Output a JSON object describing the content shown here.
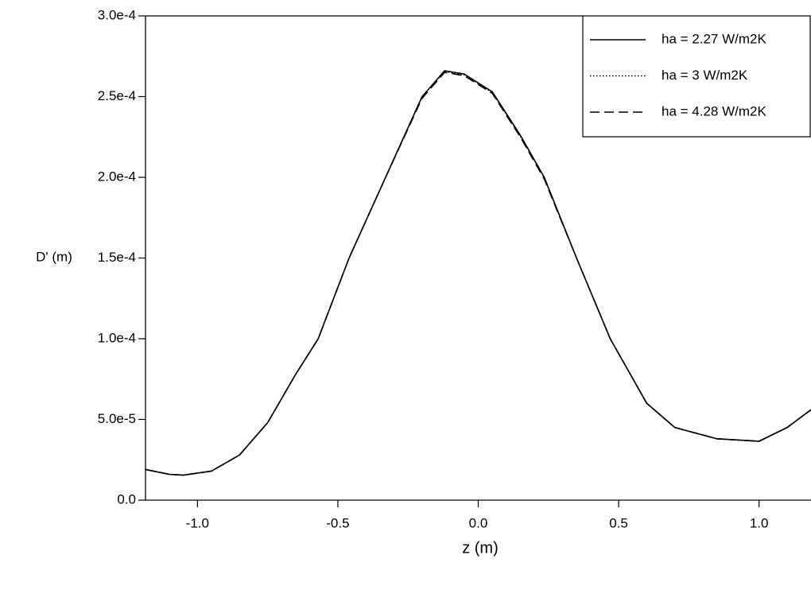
{
  "chart_data": {
    "type": "line",
    "x_label": "z (m)",
    "y_label": "D' (m)",
    "x": [
      -1.185,
      -1.1,
      -1.05,
      -0.95,
      -0.85,
      -0.75,
      -0.65,
      -0.57,
      -0.46,
      -0.33,
      -0.2,
      -0.12,
      -0.05,
      0.05,
      0.15,
      0.235,
      0.35,
      0.47,
      0.6,
      0.7,
      0.85,
      1.0,
      1.1,
      1.185
    ],
    "series": [
      {
        "name": "ha = 2.27 W/m2K",
        "color": "#000000",
        "dash": "solid",
        "values": [
          1.9e-05,
          1.6e-05,
          1.55e-05,
          1.8e-05,
          2.8e-05,
          4.8e-05,
          7.8e-05,
          0.0001,
          0.00015,
          0.0002,
          0.00025,
          0.000266,
          0.000264,
          0.000253,
          0.000226,
          0.0002,
          0.00015,
          0.0001,
          6e-05,
          4.5e-05,
          3.8e-05,
          3.65e-05,
          4.5e-05,
          5.6e-05
        ]
      },
      {
        "name": "ha = 3 W/m2K",
        "color": "#000000",
        "dash": "dotted",
        "values": [
          1.9e-05,
          1.6e-05,
          1.55e-05,
          1.8e-05,
          2.8e-05,
          4.8e-05,
          7.8e-05,
          0.0001,
          0.00015,
          0.0002,
          0.00025,
          0.0002655,
          0.0002635,
          0.0002525,
          0.0002255,
          0.0002,
          0.00015,
          0.0001,
          6e-05,
          4.5e-05,
          3.8e-05,
          3.65e-05,
          4.5e-05,
          5.6e-05
        ]
      },
      {
        "name": "ha = 4.28 W/m2K",
        "color": "#000000",
        "dash": "dashed",
        "values": [
          1.9e-05,
          1.6e-05,
          1.55e-05,
          1.8e-05,
          2.8e-05,
          4.8e-05,
          7.8e-05,
          0.0001,
          0.00015,
          0.0002,
          0.000249,
          0.000265,
          0.000263,
          0.000252,
          0.000225,
          0.000199,
          0.00015,
          0.0001,
          6e-05,
          4.5e-05,
          3.8e-05,
          3.65e-05,
          4.5e-05,
          5.6e-05
        ]
      }
    ],
    "xlim": [
      -1.185,
      1.185
    ],
    "xticks": [
      {
        "value": -1,
        "label": "-1.0"
      },
      {
        "value": -0.5,
        "label": "-0.5"
      },
      {
        "value": 0,
        "label": "0.0"
      },
      {
        "value": 0.5,
        "label": "0.5"
      },
      {
        "value": 1,
        "label": "1.0"
      }
    ],
    "ylim": [
      0,
      0.0003
    ],
    "yticks": [
      {
        "value": 0,
        "label": "0.0"
      },
      {
        "value": 5e-05,
        "label": "5.0e-5"
      },
      {
        "value": 0.0001,
        "label": "1.0e-4"
      },
      {
        "value": 0.00015,
        "label": "1.5e-4"
      },
      {
        "value": 0.0002,
        "label": "2.0e-4"
      },
      {
        "value": 0.00025,
        "label": "2.5e-4"
      },
      {
        "value": 0.0003,
        "label": "3.0e-4"
      }
    ],
    "legend": "top-right",
    "grid": false
  }
}
